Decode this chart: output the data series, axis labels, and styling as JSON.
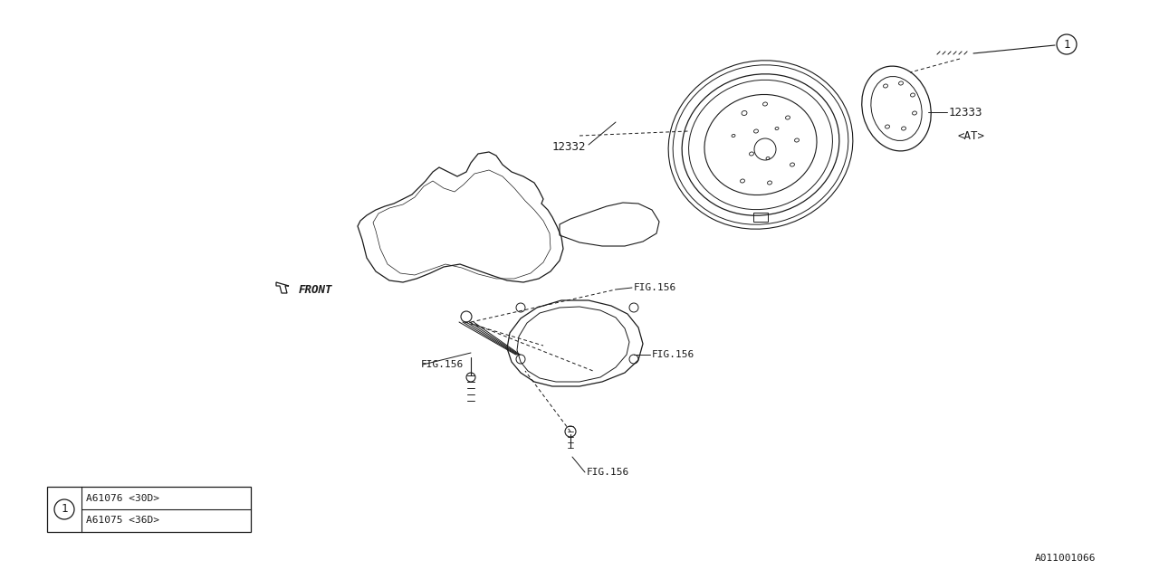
{
  "bg_color": "#ffffff",
  "line_color": "#1a1a1a",
  "part_number_label": "A011001066",
  "legend_rows": [
    "A61076 <30D>",
    "A61075 <36D>"
  ],
  "at_label": "<AT>",
  "front_label": "FRONT",
  "label_12332": "12332",
  "label_12333": "12333",
  "fig156": "FIG.156"
}
